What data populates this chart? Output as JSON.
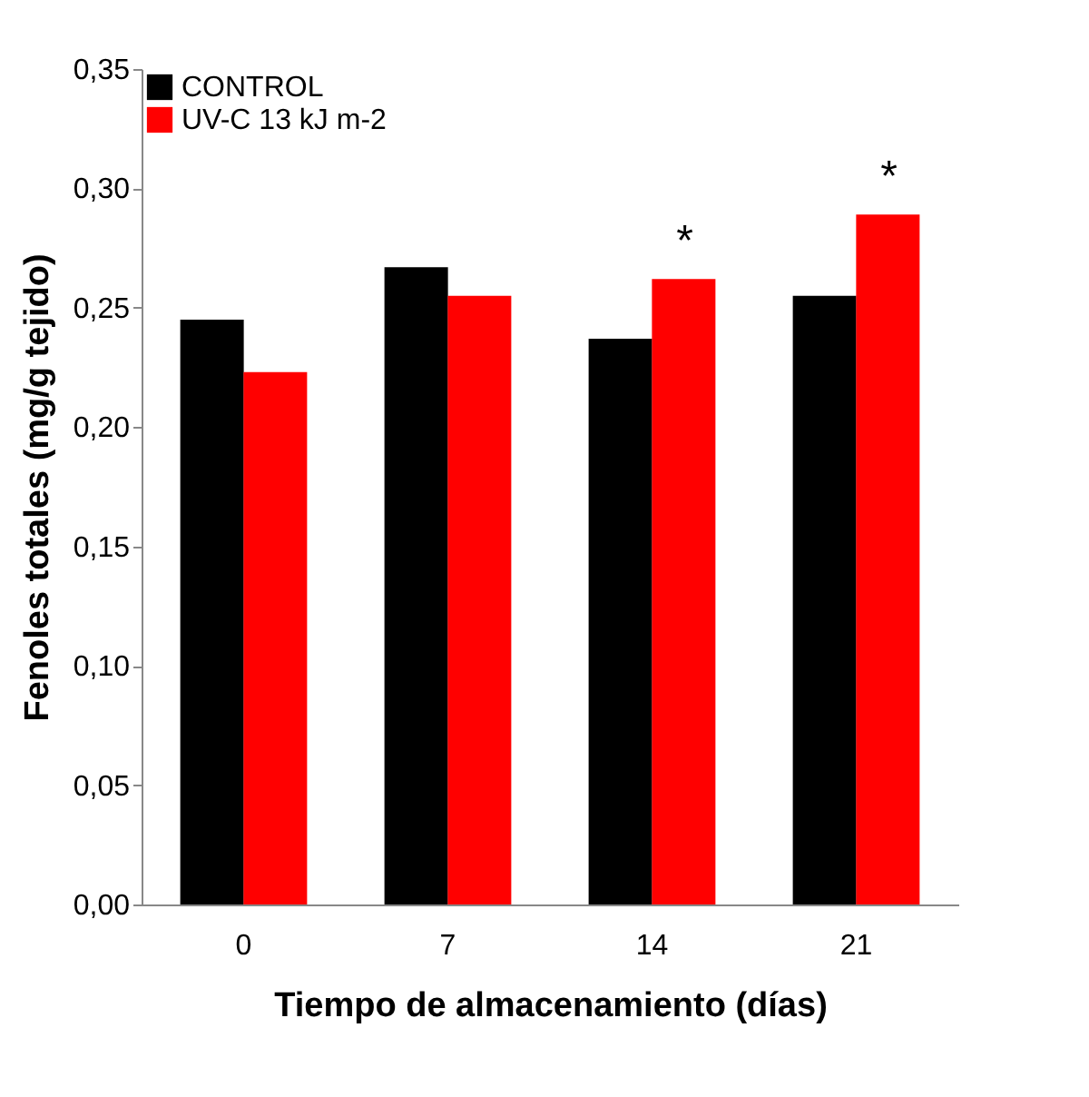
{
  "chart_data": {
    "type": "bar",
    "xlabel": "Tiempo de almacenamiento  (días)",
    "ylabel": "Fenoles totales  (mg/g tejido)",
    "categories": [
      "0",
      "7",
      "14",
      "21"
    ],
    "series": [
      {
        "name": "CONTROL",
        "color": "#000000",
        "values": [
          0.245,
          0.267,
          0.237,
          0.255
        ]
      },
      {
        "name": "UV-C 13 kJ m-2",
        "color": "#ff0000",
        "values": [
          0.223,
          0.255,
          0.262,
          0.289
        ]
      }
    ],
    "ylim": [
      0,
      0.35
    ],
    "yticks": [
      {
        "value": 0,
        "label": "0,00"
      },
      {
        "value": 0.05,
        "label": "0,05"
      },
      {
        "value": 0.1,
        "label": "0,10"
      },
      {
        "value": 0.15,
        "label": "0,15"
      },
      {
        "value": 0.2,
        "label": "0,20"
      },
      {
        "value": 0.25,
        "label": "0,25"
      },
      {
        "value": 0.3,
        "label": "0,30"
      },
      {
        "value": 0.35,
        "label": "0,35"
      }
    ],
    "annotations": [
      {
        "text": "*",
        "x": "14",
        "y": 0.262
      },
      {
        "text": "*",
        "x": "21",
        "y": 0.289
      }
    ],
    "grid": false,
    "legend": "top left"
  }
}
